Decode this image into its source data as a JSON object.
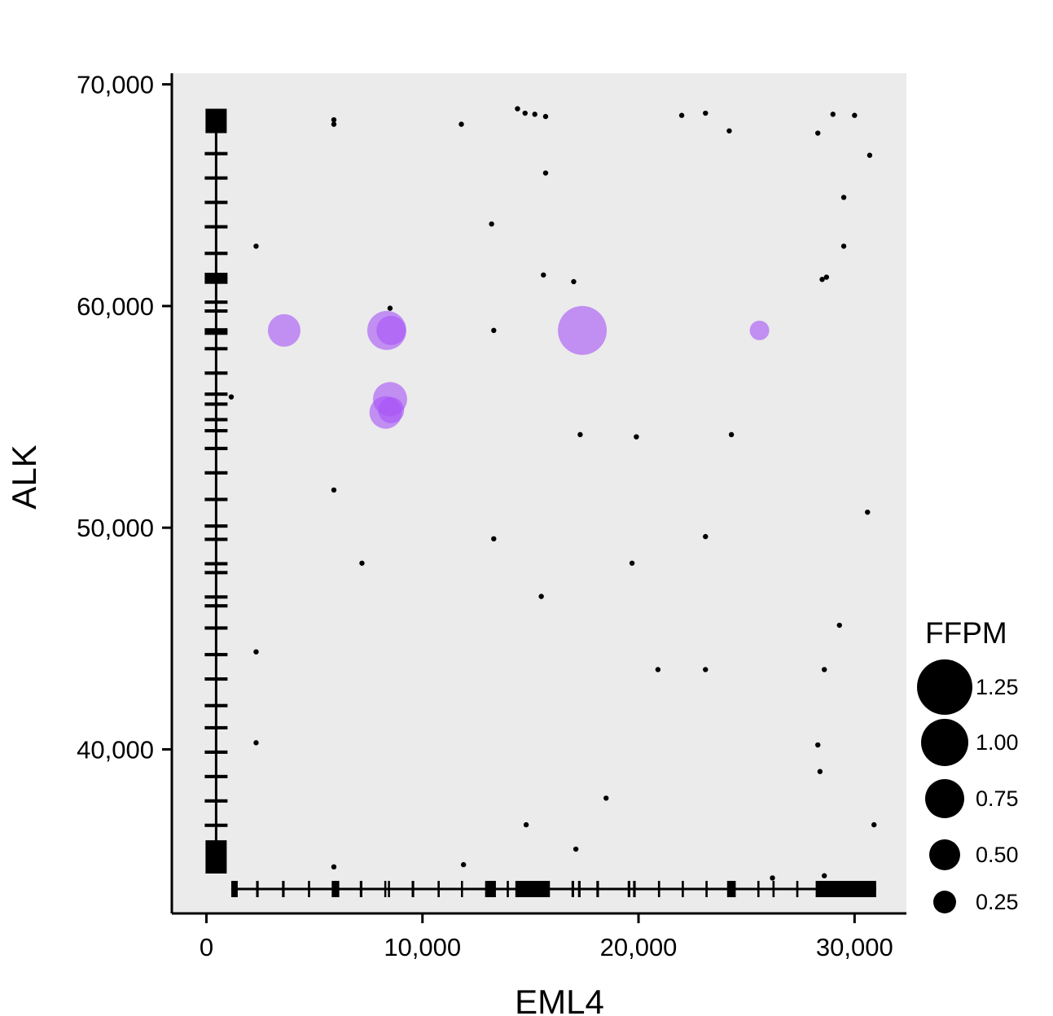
{
  "chart_data": {
    "type": "scatter",
    "xlabel": "EML4",
    "ylabel": "ALK",
    "xlim": [
      -1600,
      32400
    ],
    "ylim": [
      32600,
      70500
    ],
    "x_ticks": [
      0,
      10000,
      20000,
      30000
    ],
    "x_tick_labels": [
      "0",
      "10,000",
      "20,000",
      "30,000"
    ],
    "y_ticks": [
      40000,
      50000,
      60000,
      70000
    ],
    "y_tick_labels": [
      "40,000",
      "50,000",
      "60,000",
      "70,000"
    ],
    "grid": false,
    "panel_background": "#ebebeb",
    "legend": {
      "title": "FFPM",
      "placement": "right",
      "entries": [
        {
          "label": "1.25",
          "value": 1.25
        },
        {
          "label": "1.00",
          "value": 1.0
        },
        {
          "label": "0.75",
          "value": 0.75
        },
        {
          "label": "0.50",
          "value": 0.5
        },
        {
          "label": "0.25",
          "value": 0.25
        }
      ]
    },
    "fusion_color": "#a855f7",
    "fusions": [
      {
        "x": 3600,
        "y": 58900,
        "ffpm": 0.55
      },
      {
        "x": 8350,
        "y": 58900,
        "ffpm": 0.75
      },
      {
        "x": 8550,
        "y": 58900,
        "ffpm": 0.45
      },
      {
        "x": 8500,
        "y": 55800,
        "ffpm": 0.6
      },
      {
        "x": 8300,
        "y": 55200,
        "ffpm": 0.55
      },
      {
        "x": 8550,
        "y": 55300,
        "ffpm": 0.35
      },
      {
        "x": 17400,
        "y": 58900,
        "ffpm": 1.05
      },
      {
        "x": 25600,
        "y": 58900,
        "ffpm": 0.15
      }
    ],
    "breakpoints": [
      [
        5900,
        68400
      ],
      [
        5900,
        68200
      ],
      [
        11800,
        68200
      ],
      [
        14400,
        68900
      ],
      [
        14750,
        68700
      ],
      [
        15200,
        68650
      ],
      [
        15700,
        68550
      ],
      [
        22000,
        68600
      ],
      [
        23100,
        68700
      ],
      [
        24200,
        67900
      ],
      [
        28300,
        67800
      ],
      [
        29000,
        68650
      ],
      [
        30000,
        68600
      ],
      [
        30700,
        66800
      ],
      [
        15700,
        66000
      ],
      [
        29500,
        64900
      ],
      [
        13200,
        63700
      ],
      [
        2300,
        62700
      ],
      [
        29500,
        62700
      ],
      [
        15600,
        61400
      ],
      [
        17000,
        61100
      ],
      [
        28500,
        61200
      ],
      [
        28700,
        61300
      ],
      [
        8500,
        59900
      ],
      [
        13300,
        58900
      ],
      [
        1150,
        55900
      ],
      [
        17300,
        54200
      ],
      [
        19900,
        54100
      ],
      [
        24300,
        54200
      ],
      [
        5900,
        51700
      ],
      [
        30600,
        50700
      ],
      [
        13300,
        49500
      ],
      [
        23100,
        49600
      ],
      [
        7200,
        48400
      ],
      [
        19700,
        48400
      ],
      [
        15500,
        46900
      ],
      [
        29300,
        45600
      ],
      [
        2300,
        44400
      ],
      [
        20900,
        43600
      ],
      [
        23100,
        43600
      ],
      [
        28600,
        43600
      ],
      [
        2300,
        40300
      ],
      [
        28300,
        40200
      ],
      [
        28400,
        39000
      ],
      [
        18500,
        37800
      ],
      [
        14800,
        36600
      ],
      [
        30900,
        36600
      ],
      [
        17100,
        35500
      ],
      [
        5900,
        34700
      ],
      [
        11900,
        34800
      ],
      [
        26200,
        34200
      ],
      [
        28600,
        34300
      ]
    ],
    "x_gene_track": {
      "y": 33700,
      "start": 1150,
      "end": 31000,
      "exons": [
        {
          "start": 1150,
          "end": 1450
        },
        {
          "start": 2300,
          "end": 2420
        },
        {
          "start": 3500,
          "end": 3620
        },
        {
          "start": 4700,
          "end": 4800
        },
        {
          "start": 5800,
          "end": 6150
        },
        {
          "start": 7100,
          "end": 7220
        },
        {
          "start": 8250,
          "end": 8310
        },
        {
          "start": 8420,
          "end": 8480
        },
        {
          "start": 9500,
          "end": 9620
        },
        {
          "start": 10700,
          "end": 10800
        },
        {
          "start": 11800,
          "end": 11860
        },
        {
          "start": 12900,
          "end": 13400
        },
        {
          "start": 13900,
          "end": 14000
        },
        {
          "start": 14300,
          "end": 15900
        },
        {
          "start": 16900,
          "end": 17020
        },
        {
          "start": 17200,
          "end": 17320
        },
        {
          "start": 18050,
          "end": 18170
        },
        {
          "start": 19500,
          "end": 19620
        },
        {
          "start": 19750,
          "end": 19870
        },
        {
          "start": 20900,
          "end": 21000
        },
        {
          "start": 22000,
          "end": 22100
        },
        {
          "start": 23100,
          "end": 23200
        },
        {
          "start": 24100,
          "end": 24500
        },
        {
          "start": 25500,
          "end": 25600
        },
        {
          "start": 26200,
          "end": 26300
        },
        {
          "start": 27300,
          "end": 27400
        },
        {
          "start": 28200,
          "end": 31000
        }
      ]
    },
    "y_gene_track": {
      "x": 450,
      "start": 34400,
      "end": 68900,
      "exons": [
        {
          "start": 34400,
          "end": 35900
        },
        {
          "start": 36500,
          "end": 36650
        },
        {
          "start": 37600,
          "end": 37750
        },
        {
          "start": 38700,
          "end": 38850
        },
        {
          "start": 39800,
          "end": 39950
        },
        {
          "start": 40900,
          "end": 41050
        },
        {
          "start": 41900,
          "end": 42050
        },
        {
          "start": 43100,
          "end": 43250
        },
        {
          "start": 44200,
          "end": 44350
        },
        {
          "start": 45400,
          "end": 45550
        },
        {
          "start": 46400,
          "end": 46550
        },
        {
          "start": 46800,
          "end": 46950
        },
        {
          "start": 47900,
          "end": 48050
        },
        {
          "start": 48300,
          "end": 48450
        },
        {
          "start": 49400,
          "end": 49550
        },
        {
          "start": 50000,
          "end": 50150
        },
        {
          "start": 51200,
          "end": 51350
        },
        {
          "start": 52400,
          "end": 52550
        },
        {
          "start": 53500,
          "end": 53650
        },
        {
          "start": 54300,
          "end": 54450
        },
        {
          "start": 54800,
          "end": 54950
        },
        {
          "start": 55500,
          "end": 55650
        },
        {
          "start": 55950,
          "end": 56100
        },
        {
          "start": 56900,
          "end": 57050
        },
        {
          "start": 58000,
          "end": 58150
        },
        {
          "start": 58700,
          "end": 59000
        },
        {
          "start": 59700,
          "end": 59850
        },
        {
          "start": 60100,
          "end": 60250
        },
        {
          "start": 61000,
          "end": 61500
        },
        {
          "start": 62300,
          "end": 62450
        },
        {
          "start": 63500,
          "end": 63650
        },
        {
          "start": 64600,
          "end": 64750
        },
        {
          "start": 65700,
          "end": 65850
        },
        {
          "start": 66800,
          "end": 66950
        },
        {
          "start": 67800,
          "end": 68900
        }
      ]
    }
  }
}
